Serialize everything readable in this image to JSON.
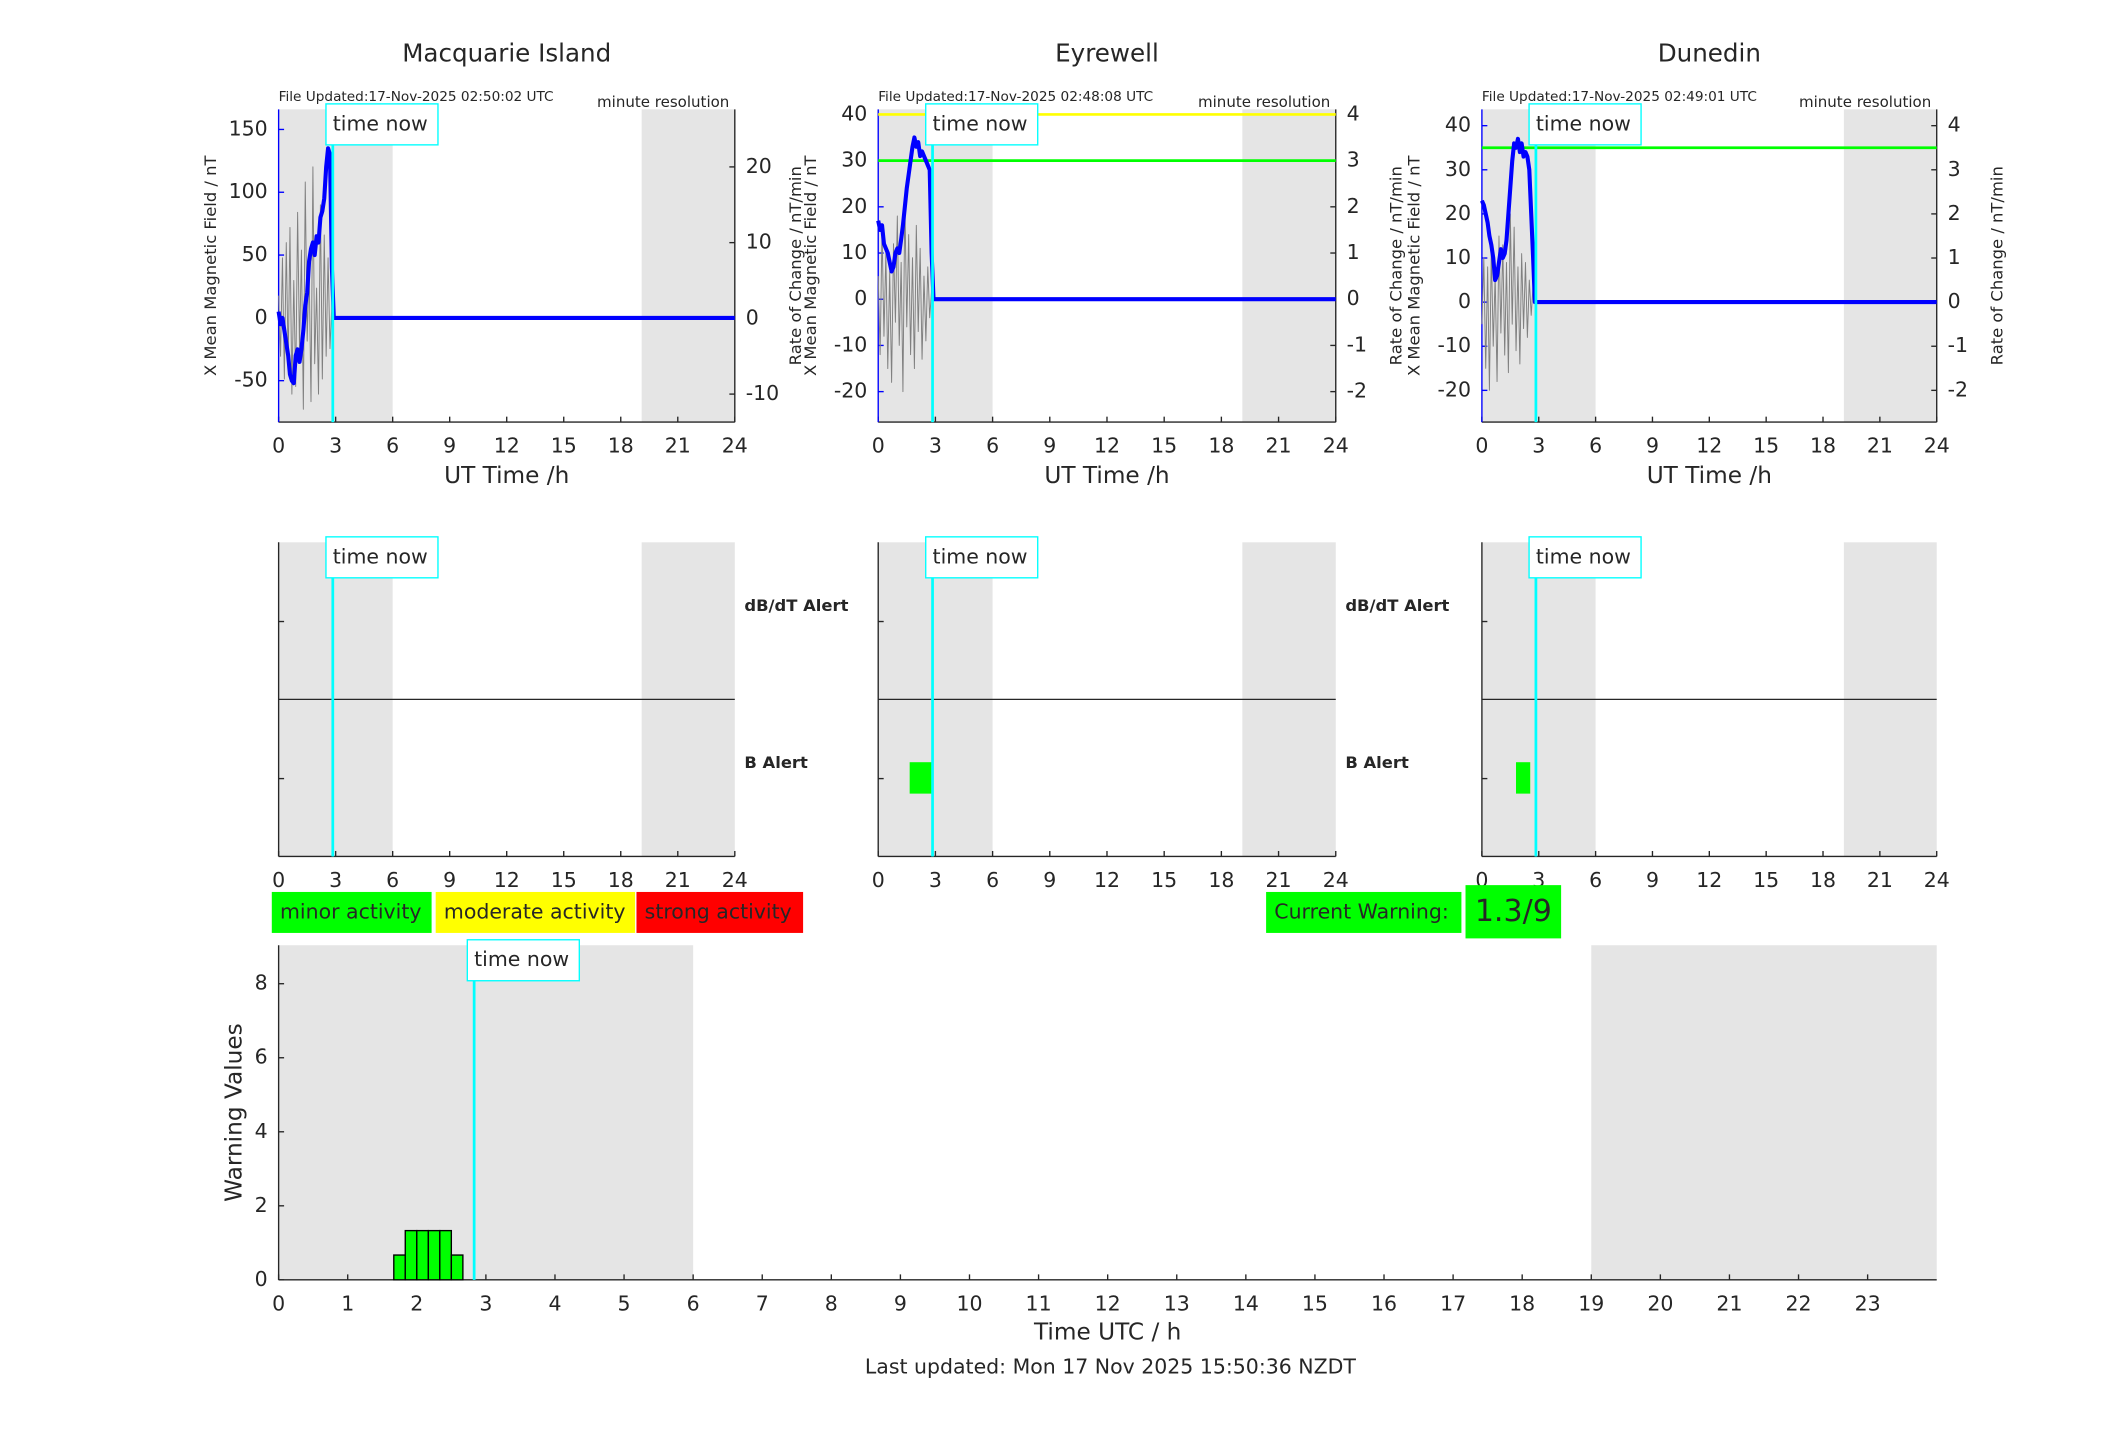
{
  "chart_data": [
    {
      "type": "line",
      "title": "Macquarie Island",
      "note": "File Updated:17-Nov-2025 02:50:02 UTC",
      "resolution": "minute resolution",
      "xlabel": "UT Time /h",
      "ylabel": "X Mean Magnetic Field / nT",
      "y2label": "Rate of Change / nT/min",
      "xlim": [
        0,
        24
      ],
      "xticks": [
        0,
        3,
        6,
        9,
        12,
        15,
        18,
        21,
        24
      ],
      "ylim": [
        -83,
        166
      ],
      "yticks": [
        -50,
        0,
        50,
        100,
        150
      ],
      "y2lim": [
        -13.7,
        27.6
      ],
      "y2ticks": [
        -10,
        0,
        10,
        20
      ],
      "shaded": [
        [
          0,
          6
        ],
        [
          19.1,
          24
        ]
      ],
      "now": 2.85,
      "now_label": "time now",
      "thresholds": [],
      "x": [
        0,
        0.1,
        0.2,
        0.3,
        0.4,
        0.5,
        0.6,
        0.7,
        0.8,
        0.9,
        1,
        1.1,
        1.2,
        1.3,
        1.4,
        1.5,
        1.6,
        1.7,
        1.8,
        1.9,
        2,
        2.1,
        2.2,
        2.3,
        2.4,
        2.5,
        2.6,
        2.7,
        2.8,
        2.9,
        24
      ],
      "series": [
        {
          "color": "#808080",
          "axis": "y2",
          "values": [
            3,
            -5,
            8,
            -8,
            10,
            -6,
            12,
            -10,
            5,
            -9,
            14,
            -4,
            9,
            -12,
            18,
            -3,
            7,
            -11,
            20,
            -6,
            4,
            -10,
            15,
            -8,
            11,
            -5,
            8,
            -4,
            2,
            0,
            null
          ]
        },
        {
          "color": "#0000ff",
          "values": [
            5,
            -5,
            0,
            -10,
            -20,
            -30,
            -45,
            -50,
            -52,
            -30,
            -25,
            -35,
            -25,
            -10,
            10,
            20,
            45,
            55,
            60,
            50,
            65,
            60,
            80,
            85,
            95,
            120,
            135,
            130,
            40,
            0,
            0
          ]
        }
      ]
    },
    {
      "type": "line",
      "title": "Eyrewell",
      "note": "File Updated:17-Nov-2025 02:48:08 UTC",
      "resolution": "minute resolution",
      "xlabel": "UT Time /h",
      "ylabel": "X Mean Magnetic Field / nT",
      "y2label": "Rate of Change / nT/min",
      "xlim": [
        0,
        24
      ],
      "xticks": [
        0,
        3,
        6,
        9,
        12,
        15,
        18,
        21,
        24
      ],
      "ylim": [
        -26.6,
        41.1
      ],
      "yticks": [
        -20,
        -10,
        0,
        10,
        20,
        30,
        40
      ],
      "y2lim": [
        -2.66,
        4.11
      ],
      "y2ticks": [
        -2,
        -1,
        0,
        1,
        2,
        3,
        4
      ],
      "shaded": [
        [
          0,
          6
        ],
        [
          19.1,
          24
        ]
      ],
      "now": 2.85,
      "now_label": "time now",
      "thresholds": [
        {
          "value": 40,
          "color": "#ffff00"
        },
        {
          "value": 30,
          "color": "#00ff00"
        }
      ],
      "x": [
        0,
        0.1,
        0.2,
        0.3,
        0.4,
        0.5,
        0.6,
        0.7,
        0.8,
        0.9,
        1,
        1.1,
        1.2,
        1.3,
        1.4,
        1.5,
        1.6,
        1.7,
        1.8,
        1.9,
        2,
        2.1,
        2.2,
        2.3,
        2.4,
        2.5,
        2.6,
        2.7,
        2.8,
        2.9,
        24
      ],
      "series": [
        {
          "color": "#808080",
          "axis": "y2",
          "values": [
            0.5,
            -1.2,
            1.5,
            -0.8,
            1.0,
            -1.5,
            0.6,
            -1.8,
            1.2,
            -0.5,
            1.8,
            -1.0,
            0.8,
            -2.0,
            2.2,
            -0.6,
            1.4,
            -1.2,
            0.9,
            -1.5,
            1.6,
            -0.7,
            1.1,
            -1.3,
            0.5,
            -0.9,
            0.7,
            -0.4,
            0.2,
            0,
            null
          ]
        },
        {
          "color": "#0000ff",
          "values": [
            17,
            15,
            16,
            12,
            11,
            10,
            8,
            6,
            7,
            10,
            11,
            10,
            13,
            16,
            20,
            24,
            27,
            30,
            33,
            35,
            33,
            34,
            31,
            32,
            31,
            30,
            29,
            28,
            10,
            0,
            0
          ]
        }
      ]
    },
    {
      "type": "line",
      "title": "Dunedin",
      "note": "File Updated:17-Nov-2025 02:49:01 UTC",
      "resolution": "minute resolution",
      "xlabel": "UT Time /h",
      "ylabel": "X Mean Magnetic Field / nT",
      "y2label": "Rate of Change / nT/min",
      "xlim": [
        0,
        24
      ],
      "xticks": [
        0,
        3,
        6,
        9,
        12,
        15,
        18,
        21,
        24
      ],
      "ylim": [
        -27.2,
        43.7
      ],
      "yticks": [
        -20,
        -10,
        0,
        10,
        20,
        30,
        40
      ],
      "y2lim": [
        -2.72,
        4.37
      ],
      "y2ticks": [
        -2,
        -1,
        0,
        1,
        2,
        3,
        4
      ],
      "shaded": [
        [
          0,
          6
        ],
        [
          19.1,
          24
        ]
      ],
      "now": 2.85,
      "now_label": "time now",
      "thresholds": [
        {
          "value": 35,
          "color": "#00ff00"
        }
      ],
      "x": [
        0,
        0.1,
        0.2,
        0.3,
        0.4,
        0.5,
        0.6,
        0.7,
        0.8,
        0.9,
        1,
        1.1,
        1.2,
        1.3,
        1.4,
        1.5,
        1.6,
        1.7,
        1.8,
        1.9,
        2,
        2.1,
        2.2,
        2.3,
        2.4,
        2.5,
        2.6,
        2.7,
        2.8,
        2.9,
        24
      ],
      "series": [
        {
          "color": "#808080",
          "axis": "y2",
          "values": [
            -0.5,
            1.0,
            -1.5,
            0.8,
            -2.0,
            1.2,
            -1.0,
            0.6,
            -1.8,
            1.5,
            -0.7,
            1.3,
            -1.2,
            0.9,
            -1.6,
            2.0,
            -0.5,
            1.7,
            -1.1,
            0.8,
            -1.4,
            1.1,
            -0.6,
            0.9,
            -0.8,
            0.5,
            -0.3,
            0.4,
            0,
            0,
            null
          ]
        },
        {
          "color": "#0000ff",
          "values": [
            23,
            22,
            20,
            18,
            15,
            13,
            10,
            5,
            6,
            9,
            12,
            10,
            11,
            14,
            20,
            26,
            32,
            36,
            35,
            37,
            34,
            36,
            33,
            34,
            33,
            30,
            20,
            10,
            0,
            0,
            0
          ]
        }
      ]
    },
    {
      "type": "alert",
      "xlim": [
        0,
        24
      ],
      "xticks": [
        0,
        3,
        6,
        9,
        12,
        15,
        18,
        21,
        24
      ],
      "shaded": [
        [
          0,
          6
        ],
        [
          19.1,
          24
        ]
      ],
      "now": 2.85,
      "now_label": "time now",
      "row_labels": [
        "dB/dT Alert",
        "B Alert"
      ],
      "b_alerts": [],
      "color": "#00ff00"
    },
    {
      "type": "alert",
      "xlim": [
        0,
        24
      ],
      "xticks": [
        0,
        3,
        6,
        9,
        12,
        15,
        18,
        21,
        24
      ],
      "shaded": [
        [
          0,
          6
        ],
        [
          19.1,
          24
        ]
      ],
      "now": 2.85,
      "now_label": "time now",
      "row_labels": [
        "dB/dT Alert",
        "B Alert"
      ],
      "b_alerts": [
        [
          1.65,
          2.8
        ]
      ],
      "color": "#00ff00"
    },
    {
      "type": "alert",
      "xlim": [
        0,
        24
      ],
      "xticks": [
        0,
        3,
        6,
        9,
        12,
        15,
        18,
        21,
        24
      ],
      "shaded": [
        [
          0,
          6
        ],
        [
          19.1,
          24
        ]
      ],
      "now": 2.85,
      "now_label": "time now",
      "row_labels": [],
      "b_alerts": [
        [
          1.8,
          2.55
        ]
      ],
      "color": "#00ff00"
    },
    {
      "type": "histogram",
      "xlabel": "Time UTC / h",
      "ylabel": "Warning Values",
      "xlim": [
        0,
        24
      ],
      "xticks": [
        0,
        1,
        2,
        3,
        4,
        5,
        6,
        7,
        8,
        9,
        10,
        11,
        12,
        13,
        14,
        15,
        16,
        17,
        18,
        19,
        20,
        21,
        22,
        23
      ],
      "ylim": [
        0,
        9.04
      ],
      "yticks": [
        0,
        2,
        4,
        6,
        8
      ],
      "shaded": [
        [
          0,
          6
        ],
        [
          19,
          24
        ]
      ],
      "now": 2.83,
      "now_label": "time now",
      "bins": [
        1.667,
        1.833,
        2.0,
        2.167,
        2.333,
        2.5,
        2.667
      ],
      "values": [
        0.67,
        1.33,
        1.33,
        1.33,
        1.33,
        0.67
      ],
      "color": "#00ff00",
      "activity_levels": [
        {
          "label": "minor activity",
          "color": "#00ff00"
        },
        {
          "label": "moderate activity",
          "color": "#ffff00"
        },
        {
          "label": "strong activity",
          "color": "#ff0000"
        }
      ],
      "current_warning": {
        "label": "Current Warning:",
        "value": "1.3/9",
        "color": "#00ff00"
      },
      "footer": "Last updated: Mon 17 Nov 2025 15:50:36 NZDT"
    }
  ]
}
